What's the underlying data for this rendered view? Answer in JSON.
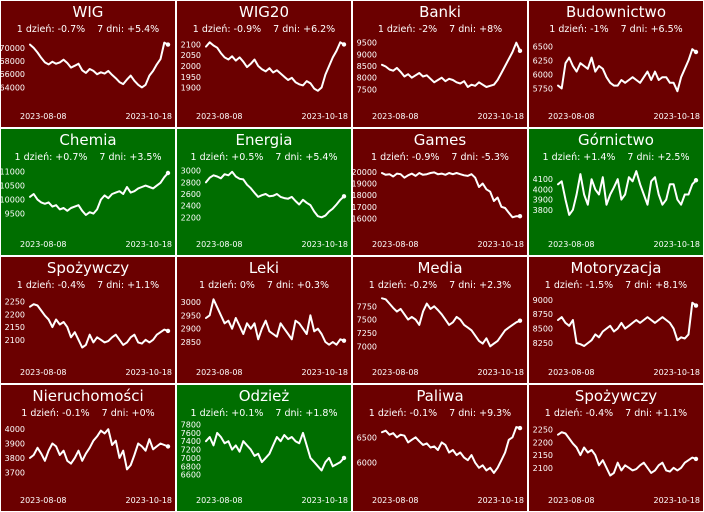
{
  "colors": {
    "negative_panel": "#6b0000",
    "positive_panel": "#006e00",
    "line": "#ffffff",
    "text": "#ffffff",
    "border": "#ffffff"
  },
  "stat_labels": {
    "day": "1 dzień:",
    "week": "7 dni:"
  },
  "chart_data": [
    {
      "type": "line",
      "title": "WIG",
      "day_change": "-0.7%",
      "week_change": "+5.4%",
      "panel_color": "#6b0000",
      "x_start": "2023-08-08",
      "x_end": "2023-10-18",
      "yticks": [
        "64000",
        "66000",
        "68000",
        "70000"
      ],
      "ylim": [
        63000,
        71500
      ],
      "values": [
        70500,
        70000,
        69300,
        68500,
        67800,
        67500,
        67900,
        67600,
        67800,
        68200,
        67700,
        67000,
        67300,
        67600,
        66600,
        66200,
        66800,
        66500,
        66000,
        66300,
        66100,
        66500,
        65900,
        65400,
        64800,
        64500,
        65200,
        65800,
        65000,
        64400,
        64000,
        64400,
        65800,
        66500,
        67500,
        68300,
        70800,
        70500
      ]
    },
    {
      "type": "line",
      "title": "WIG20",
      "day_change": "-0.9%",
      "week_change": "+6.2%",
      "panel_color": "#6b0000",
      "x_start": "2023-08-08",
      "x_end": "2023-10-18",
      "yticks": [
        "1900",
        "1950",
        "2000",
        "2050",
        "2100"
      ],
      "ylim": [
        1870,
        2130
      ],
      "values": [
        2090,
        2110,
        2095,
        2085,
        2060,
        2040,
        2030,
        2045,
        2025,
        2040,
        2020,
        1995,
        2010,
        2030,
        2000,
        1985,
        1975,
        1990,
        1970,
        1980,
        1965,
        1950,
        1935,
        1945,
        1925,
        1915,
        1910,
        1930,
        1920,
        1895,
        1885,
        1900,
        1960,
        2000,
        2040,
        2070,
        2110,
        2100
      ]
    },
    {
      "type": "line",
      "title": "Banki",
      "day_change": "-2%",
      "week_change": "+8%",
      "panel_color": "#6b0000",
      "x_start": "2023-08-08",
      "x_end": "2023-10-18",
      "yticks": [
        "7500",
        "8000",
        "8500",
        "9000",
        "9500"
      ],
      "ylim": [
        7300,
        9700
      ],
      "values": [
        8550,
        8480,
        8350,
        8300,
        8420,
        8250,
        8050,
        8150,
        8000,
        8100,
        8200,
        8050,
        8100,
        7950,
        7800,
        7900,
        8000,
        7850,
        7950,
        7900,
        7800,
        7750,
        7850,
        7600,
        7700,
        7650,
        7800,
        7700,
        7600,
        7650,
        7700,
        7900,
        8200,
        8500,
        8800,
        9100,
        9500,
        9150
      ]
    },
    {
      "type": "line",
      "title": "Budownictwo",
      "day_change": "-1%",
      "week_change": "+6.5%",
      "panel_color": "#6b0000",
      "x_start": "2023-08-08",
      "x_end": "2023-10-18",
      "yticks": [
        "5750",
        "6000",
        "6250",
        "6500"
      ],
      "ylim": [
        5650,
        6650
      ],
      "values": [
        5800,
        5750,
        6200,
        6300,
        6150,
        6050,
        6200,
        6150,
        6100,
        6300,
        6050,
        6150,
        6100,
        5950,
        5850,
        5800,
        5800,
        5900,
        5850,
        5900,
        5950,
        5900,
        5850,
        5950,
        6050,
        5900,
        6050,
        5900,
        5950,
        5950,
        5850,
        5850,
        5700,
        5950,
        6100,
        6250,
        6450,
        6400
      ]
    },
    {
      "type": "line",
      "title": "Chemia",
      "day_change": "+0.7%",
      "week_change": "+3.5%",
      "panel_color": "#006e00",
      "x_start": "2023-08-08",
      "x_end": "2023-10-18",
      "yticks": [
        "9500",
        "10000",
        "10500",
        "11000"
      ],
      "ylim": [
        9200,
        11200
      ],
      "values": [
        10100,
        10200,
        10000,
        9900,
        9850,
        9900,
        9750,
        9800,
        9650,
        9700,
        9600,
        9700,
        9750,
        9800,
        9600,
        9450,
        9550,
        9500,
        9650,
        10000,
        10150,
        10050,
        10200,
        10250,
        10300,
        10200,
        10450,
        10250,
        10300,
        10400,
        10450,
        10500,
        10450,
        10400,
        10500,
        10600,
        10800,
        10950
      ]
    },
    {
      "type": "line",
      "title": "Energia",
      "day_change": "+0.5%",
      "week_change": "+5.4%",
      "panel_color": "#006e00",
      "x_start": "2023-08-08",
      "x_end": "2023-10-18",
      "yticks": [
        "2200",
        "2400",
        "2600",
        "2800",
        "3000"
      ],
      "ylim": [
        2120,
        3080
      ],
      "values": [
        2800,
        2880,
        2920,
        2900,
        2870,
        2940,
        2920,
        2980,
        2900,
        2860,
        2850,
        2760,
        2700,
        2620,
        2550,
        2580,
        2600,
        2560,
        2570,
        2600,
        2550,
        2530,
        2520,
        2550,
        2480,
        2420,
        2500,
        2450,
        2410,
        2300,
        2220,
        2200,
        2230,
        2300,
        2350,
        2420,
        2500,
        2560
      ]
    },
    {
      "type": "line",
      "title": "Games",
      "day_change": "-0.9%",
      "week_change": "-5.3%",
      "panel_color": "#6b0000",
      "x_start": "2023-08-08",
      "x_end": "2023-10-18",
      "yticks": [
        "16000",
        "17000",
        "18000",
        "19000",
        "20000"
      ],
      "ylim": [
        15700,
        20500
      ],
      "values": [
        19900,
        19750,
        19800,
        19600,
        19850,
        19800,
        19500,
        19700,
        19850,
        19650,
        19900,
        19750,
        19800,
        19900,
        19950,
        19800,
        19850,
        19750,
        19900,
        19800,
        19900,
        19800,
        19700,
        19650,
        19800,
        19500,
        18700,
        19000,
        18500,
        18300,
        17500,
        17800,
        17000,
        16900,
        16500,
        16100,
        16200,
        16200
      ]
    },
    {
      "type": "line",
      "title": "Górnictwo",
      "day_change": "+1.4%",
      "week_change": "+2.5%",
      "panel_color": "#006e00",
      "x_start": "2023-08-08",
      "x_end": "2023-10-18",
      "yticks": [
        "3800",
        "3900",
        "4000",
        "4100"
      ],
      "ylim": [
        3680,
        4230
      ],
      "values": [
        4050,
        4080,
        3900,
        3750,
        3800,
        3950,
        4150,
        3950,
        3850,
        4100,
        4000,
        3950,
        4120,
        3850,
        3950,
        4020,
        4100,
        3900,
        3950,
        4120,
        4080,
        4180,
        4050,
        3950,
        3850,
        4080,
        4120,
        3950,
        3850,
        3900,
        4050,
        4050,
        3900,
        3850,
        3950,
        3950,
        4050,
        4090
      ]
    },
    {
      "type": "line",
      "title": "Spożywczy",
      "day_change": "-0.4%",
      "week_change": "+1.1%",
      "panel_color": "#6b0000",
      "x_start": "2023-08-08",
      "x_end": "2023-10-18",
      "yticks": [
        "2100",
        "2150",
        "2200",
        "2250"
      ],
      "ylim": [
        2060,
        2280
      ],
      "values": [
        2230,
        2240,
        2235,
        2215,
        2195,
        2180,
        2150,
        2180,
        2160,
        2170,
        2150,
        2110,
        2130,
        2100,
        2070,
        2080,
        2120,
        2090,
        2110,
        2100,
        2090,
        2095,
        2110,
        2120,
        2100,
        2080,
        2090,
        2110,
        2120,
        2090,
        2085,
        2100,
        2090,
        2100,
        2120,
        2130,
        2140,
        2135
      ]
    },
    {
      "type": "line",
      "title": "Leki",
      "day_change": "0%",
      "week_change": "+0.3%",
      "panel_color": "#6b0000",
      "x_start": "2023-08-08",
      "x_end": "2023-10-18",
      "yticks": [
        "2850",
        "2900",
        "2950",
        "3000"
      ],
      "ylim": [
        2820,
        3030
      ],
      "values": [
        2940,
        2950,
        3010,
        2980,
        2950,
        2920,
        2930,
        2900,
        2940,
        2910,
        2880,
        2920,
        2900,
        2920,
        2860,
        2900,
        2930,
        2890,
        2880,
        2870,
        2920,
        2900,
        2880,
        2860,
        2930,
        2920,
        2900,
        2880,
        2950,
        2890,
        2900,
        2880,
        2850,
        2840,
        2850,
        2840,
        2860,
        2855
      ]
    },
    {
      "type": "line",
      "title": "Media",
      "day_change": "-0.2%",
      "week_change": "+2.3%",
      "panel_color": "#6b0000",
      "x_start": "2023-08-08",
      "x_end": "2023-10-18",
      "yticks": [
        "7000",
        "7250",
        "7500",
        "7750"
      ],
      "ylim": [
        6930,
        7980
      ],
      "values": [
        7900,
        7880,
        7800,
        7720,
        7650,
        7700,
        7600,
        7500,
        7550,
        7500,
        7400,
        7650,
        7800,
        7700,
        7750,
        7680,
        7600,
        7500,
        7400,
        7450,
        7550,
        7500,
        7400,
        7350,
        7300,
        7200,
        7100,
        7050,
        7150,
        7000,
        7050,
        7100,
        7200,
        7300,
        7350,
        7400,
        7450,
        7480
      ]
    },
    {
      "type": "line",
      "title": "Motoryzacja",
      "day_change": "-1.5%",
      "week_change": "+8.1%",
      "panel_color": "#6b0000",
      "x_start": "2023-08-08",
      "x_end": "2023-10-18",
      "yticks": [
        "8250",
        "8500",
        "8750",
        "9000"
      ],
      "ylim": [
        8130,
        9100
      ],
      "values": [
        8650,
        8700,
        8600,
        8550,
        8650,
        8250,
        8230,
        8200,
        8250,
        8300,
        8400,
        8350,
        8450,
        8500,
        8550,
        8450,
        8500,
        8600,
        8500,
        8550,
        8600,
        8650,
        8600,
        8650,
        8700,
        8650,
        8600,
        8650,
        8700,
        8650,
        8600,
        8500,
        8300,
        8350,
        8330,
        8400,
        8950,
        8900
      ]
    },
    {
      "type": "line",
      "title": "Nieruchomości",
      "day_change": "-0.1%",
      "week_change": "+0%",
      "panel_color": "#6b0000",
      "x_start": "2023-08-08",
      "x_end": "2023-10-18",
      "yticks": [
        "3700",
        "3800",
        "3900",
        "4000"
      ],
      "ylim": [
        3660,
        4050
      ],
      "values": [
        3800,
        3820,
        3870,
        3830,
        3780,
        3850,
        3900,
        3880,
        3820,
        3850,
        3780,
        3760,
        3800,
        3850,
        3780,
        3830,
        3870,
        3920,
        3950,
        3990,
        3970,
        4000,
        3890,
        3920,
        3800,
        3850,
        3720,
        3750,
        3820,
        3900,
        3880,
        3850,
        3930,
        3860,
        3880,
        3900,
        3890,
        3880
      ]
    },
    {
      "type": "line",
      "title": "Odzież",
      "day_change": "+0.1%",
      "week_change": "+1.8%",
      "panel_color": "#006e00",
      "x_start": "2023-08-08",
      "x_end": "2023-10-18",
      "yticks": [
        "6600",
        "6800",
        "7000",
        "7200",
        "7400",
        "7600",
        "7800"
      ],
      "ylim": [
        6520,
        7860
      ],
      "values": [
        7400,
        7500,
        7300,
        7600,
        7500,
        7350,
        7400,
        7200,
        7300,
        7150,
        7400,
        7300,
        7200,
        7050,
        7100,
        6900,
        7000,
        7100,
        7300,
        7500,
        7400,
        7550,
        7450,
        7500,
        7400,
        7350,
        7600,
        7300,
        7000,
        6900,
        6800,
        6700,
        6900,
        7000,
        6800,
        6850,
        6900,
        7000
      ]
    },
    {
      "type": "line",
      "title": "Paliwa",
      "day_change": "-0.1%",
      "week_change": "+9.3%",
      "panel_color": "#6b0000",
      "x_start": "2023-08-08",
      "x_end": "2023-10-18",
      "yticks": [
        "6000",
        "6500"
      ],
      "ylim": [
        5700,
        6800
      ],
      "values": [
        6600,
        6630,
        6550,
        6580,
        6500,
        6550,
        6530,
        6400,
        6450,
        6500,
        6420,
        6350,
        6380,
        6300,
        6320,
        6250,
        6400,
        6350,
        6200,
        6250,
        6150,
        6200,
        6100,
        6050,
        6150,
        6000,
        5900,
        5950,
        5850,
        5900,
        5800,
        5900,
        6050,
        6200,
        6450,
        6500,
        6700,
        6680
      ]
    },
    {
      "type": "line",
      "title": "Spożywczy",
      "day_change": "-0.4%",
      "week_change": "+1.1%",
      "panel_color": "#6b0000",
      "x_start": "2023-08-08",
      "x_end": "2023-10-18",
      "yticks": [
        "2100",
        "2150",
        "2200",
        "2250"
      ],
      "ylim": [
        2060,
        2280
      ],
      "values": [
        2230,
        2240,
        2235,
        2215,
        2195,
        2180,
        2150,
        2180,
        2160,
        2170,
        2150,
        2110,
        2130,
        2100,
        2070,
        2080,
        2120,
        2090,
        2110,
        2100,
        2090,
        2095,
        2110,
        2120,
        2100,
        2080,
        2090,
        2110,
        2120,
        2090,
        2085,
        2100,
        2090,
        2100,
        2120,
        2130,
        2140,
        2135
      ]
    }
  ]
}
